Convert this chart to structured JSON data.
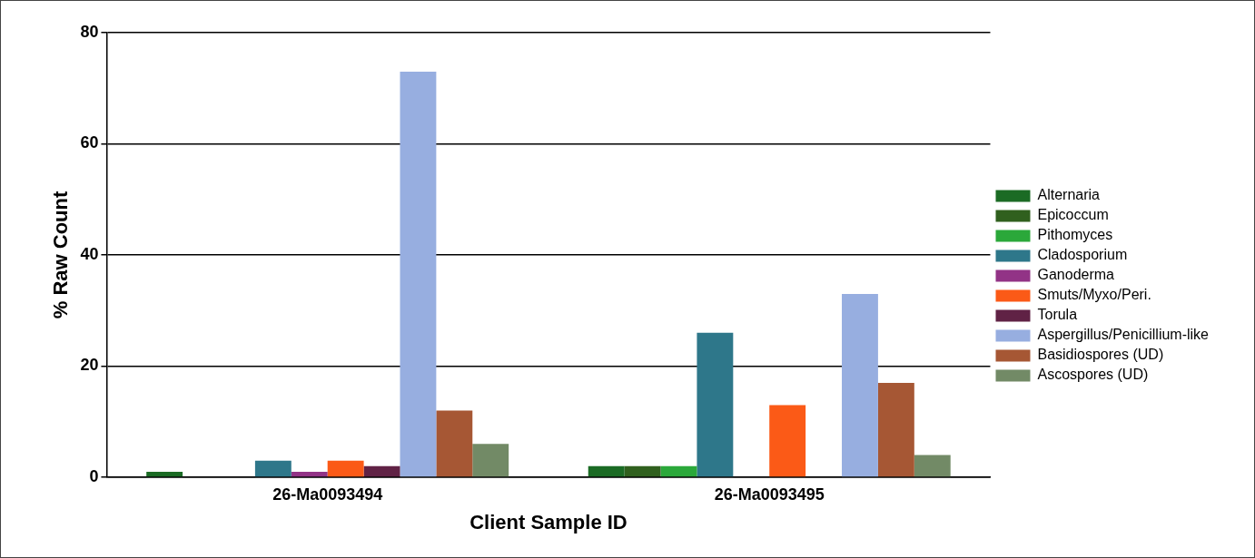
{
  "chart_data": {
    "type": "bar",
    "xlabel": "Client Sample ID",
    "ylabel": "% Raw Count",
    "categories": [
      "26-Ma0093494",
      "26-Ma0093495"
    ],
    "series": [
      {
        "name": "Alternaria",
        "color": "#1b6b24",
        "values": [
          1,
          2
        ]
      },
      {
        "name": "Epicoccum",
        "color": "#30601e",
        "values": [
          0,
          2
        ]
      },
      {
        "name": "Pithomyces",
        "color": "#2ba83a",
        "values": [
          0,
          2
        ]
      },
      {
        "name": "Cladosporium",
        "color": "#2e778a",
        "values": [
          3,
          26
        ]
      },
      {
        "name": "Ganoderma",
        "color": "#923386",
        "values": [
          1,
          0
        ]
      },
      {
        "name": "Smuts/Myxo/Peri.",
        "color": "#fb5a17",
        "values": [
          3,
          13
        ]
      },
      {
        "name": "Torula",
        "color": "#602245",
        "values": [
          2,
          0
        ]
      },
      {
        "name": "Aspergillus/Penicillium-like",
        "color": "#97aee0",
        "values": [
          73,
          33
        ]
      },
      {
        "name": "Basidiospores (UD)",
        "color": "#a65734",
        "values": [
          12,
          17
        ]
      },
      {
        "name": "Ascospores (UD)",
        "color": "#728a66",
        "values": [
          6,
          4
        ]
      }
    ],
    "ylim": [
      0,
      80
    ],
    "yticks": [
      0,
      20,
      40,
      60,
      80
    ],
    "grid": "y",
    "legend": "right"
  }
}
